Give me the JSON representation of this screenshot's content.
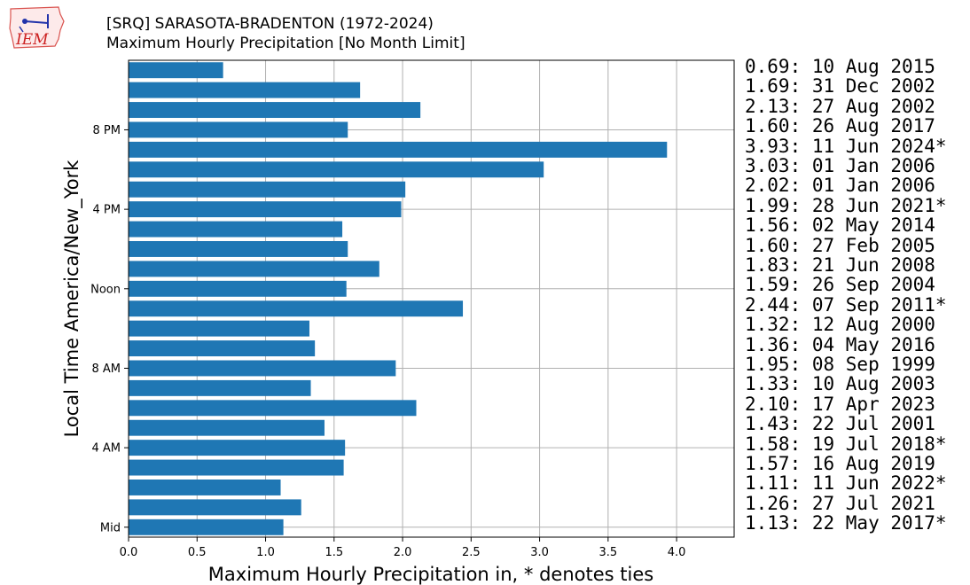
{
  "logo": {
    "text": "IEM"
  },
  "header": {
    "title": "[SRQ] SARASOTA-BRADENTON (1972-2024)",
    "subtitle": "Maximum Hourly Precipitation [No Month Limit]"
  },
  "chart_data": {
    "type": "bar",
    "orientation": "horizontal",
    "xlabel": "Maximum Hourly Precipitation in, * denotes ties",
    "ylabel": "Local Time America/New_York",
    "xlim": [
      0,
      4.42
    ],
    "xticks": [
      "0.0",
      "0.5",
      "1.0",
      "1.5",
      "2.0",
      "2.5",
      "3.0",
      "3.5",
      "4.0"
    ],
    "xtick_values": [
      0,
      0.5,
      1,
      1.5,
      2,
      2.5,
      3,
      3.5,
      4
    ],
    "ytick_labels": [
      {
        "hour": 0,
        "label": "Mid"
      },
      {
        "hour": 4,
        "label": "4 AM"
      },
      {
        "hour": 8,
        "label": "8 AM"
      },
      {
        "hour": 12,
        "label": "Noon"
      },
      {
        "hour": 16,
        "label": "4 PM"
      },
      {
        "hour": 20,
        "label": "8 PM"
      }
    ],
    "grid": true,
    "bar_color": "#1f77b4",
    "hours": [
      0,
      1,
      2,
      3,
      4,
      5,
      6,
      7,
      8,
      9,
      10,
      11,
      12,
      13,
      14,
      15,
      16,
      17,
      18,
      19,
      20,
      21,
      22,
      23
    ],
    "values": [
      1.13,
      1.26,
      1.11,
      1.57,
      1.58,
      1.43,
      2.1,
      1.33,
      1.95,
      1.36,
      1.32,
      2.44,
      1.59,
      1.83,
      1.6,
      1.56,
      1.99,
      2.02,
      3.03,
      3.93,
      1.6,
      2.13,
      1.69,
      0.69
    ],
    "labels_top_to_bottom": [
      "0.69: 10 Aug 2015",
      "1.69: 31 Dec 2002",
      "2.13: 27 Aug 2002",
      "1.60: 26 Aug 2017",
      "3.93: 11 Jun 2024*",
      "3.03: 01 Jan 2006",
      "2.02: 01 Jan 2006",
      "1.99: 28 Jun 2021*",
      "1.56: 02 May 2014",
      "1.60: 27 Feb 2005",
      "1.83: 21 Jun 2008",
      "1.59: 26 Sep 2004",
      "2.44: 07 Sep 2011*",
      "1.32: 12 Aug 2000",
      "1.36: 04 May 2016",
      "1.95: 08 Sep 1999",
      "1.33: 10 Aug 2003",
      "2.10: 17 Apr 2023",
      "1.43: 22 Jul 2001",
      "1.58: 19 Jul 2018*",
      "1.57: 16 Aug 2019",
      "1.11: 11 Jun 2022*",
      "1.26: 27 Jul 2021",
      "1.13: 22 May 2017*"
    ]
  }
}
